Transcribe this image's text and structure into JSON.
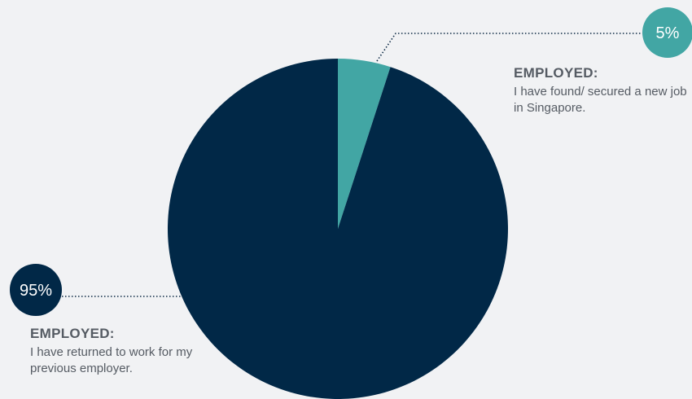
{
  "chart_data": {
    "type": "pie",
    "slices": [
      {
        "value": 5,
        "display": "5%",
        "category": "EMPLOYED:",
        "description": "I have found/ secured a new job in Singapore.",
        "color": "#42a6a4"
      },
      {
        "value": 95,
        "display": "95%",
        "category": "EMPLOYED:",
        "description": "I have returned to work for my previous employer.",
        "color": "#012847"
      }
    ],
    "start_angle_deg": 0,
    "direction": "clockwise"
  },
  "colors": {
    "background": "#f1f2f4",
    "leader_line": "#0d2a45",
    "label_text": "#555b63"
  }
}
